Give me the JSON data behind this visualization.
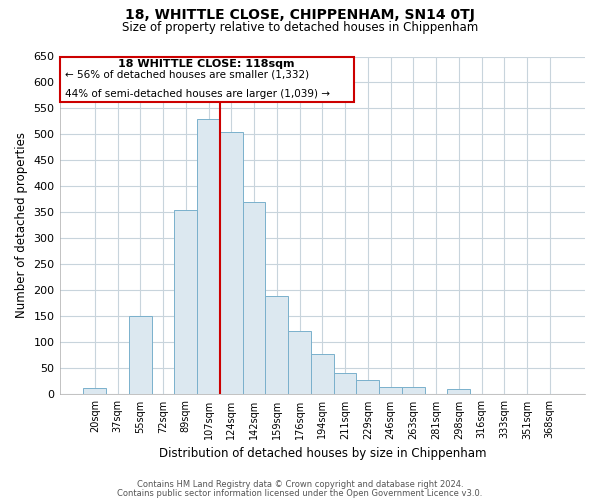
{
  "title": "18, WHITTLE CLOSE, CHIPPENHAM, SN14 0TJ",
  "subtitle": "Size of property relative to detached houses in Chippenham",
  "xlabel": "Distribution of detached houses by size in Chippenham",
  "ylabel": "Number of detached properties",
  "bar_color": "#dce8f0",
  "bar_edge_color": "#7ab0cc",
  "highlight_line_color": "#cc0000",
  "annotation_box_color": "#cc0000",
  "background_color": "#ffffff",
  "grid_color": "#c8d4dc",
  "categories": [
    "20sqm",
    "37sqm",
    "55sqm",
    "72sqm",
    "89sqm",
    "107sqm",
    "124sqm",
    "142sqm",
    "159sqm",
    "176sqm",
    "194sqm",
    "211sqm",
    "229sqm",
    "246sqm",
    "263sqm",
    "281sqm",
    "298sqm",
    "316sqm",
    "333sqm",
    "351sqm",
    "368sqm"
  ],
  "values": [
    12,
    0,
    150,
    0,
    355,
    530,
    505,
    370,
    190,
    122,
    78,
    42,
    28,
    15,
    14,
    0,
    10,
    0,
    0,
    0,
    0
  ],
  "highlight_line_index": 6,
  "ylim": [
    0,
    650
  ],
  "yticks": [
    0,
    50,
    100,
    150,
    200,
    250,
    300,
    350,
    400,
    450,
    500,
    550,
    600,
    650
  ],
  "annotation_title": "18 WHITTLE CLOSE: 118sqm",
  "annotation_line1": "← 56% of detached houses are smaller (1,332)",
  "annotation_line2": "44% of semi-detached houses are larger (1,039) →",
  "footer1": "Contains HM Land Registry data © Crown copyright and database right 2024.",
  "footer2": "Contains public sector information licensed under the Open Government Licence v3.0."
}
